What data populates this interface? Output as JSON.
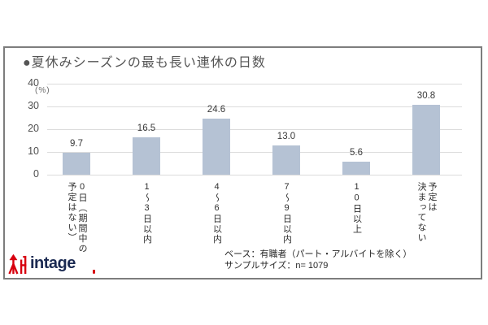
{
  "chart_data": {
    "type": "bar",
    "title": "●夏休みシーズンの最も長い連休の日数",
    "unit_label": "(%)",
    "categories": [
      "0日（期間中の予定はない）",
      "1〜3日以内",
      "4〜6日以内",
      "7〜9日以内",
      "10日以上",
      "予定は決まってない"
    ],
    "category_display": [
      "0日（期間中の\n予定はない）",
      "1〜3日以内",
      "4〜6日以内",
      "7〜9日以内",
      "10日以上",
      "予定は\n決まってない"
    ],
    "values": [
      9.7,
      16.5,
      24.6,
      13.0,
      5.6,
      30.8
    ],
    "value_labels": [
      "9.7",
      "16.5",
      "24.6",
      "13.0",
      "5.6",
      "30.8"
    ],
    "xlabel": "",
    "ylabel": "(%)",
    "ylim": [
      0,
      40
    ],
    "yticks": [
      0,
      10,
      20,
      30,
      40
    ],
    "grid": true,
    "legend_position": "none",
    "bar_color": "#b5c2d4",
    "gridline_color": "#dcdcdc"
  },
  "footer": {
    "line1": "ベース：有職者（パート・アルバイトを除く）",
    "line2": "サンプルサイズ：n= 1079"
  },
  "logo": {
    "text": "intage",
    "mark_color": "#d7000f",
    "text_color": "#1b2a52"
  }
}
